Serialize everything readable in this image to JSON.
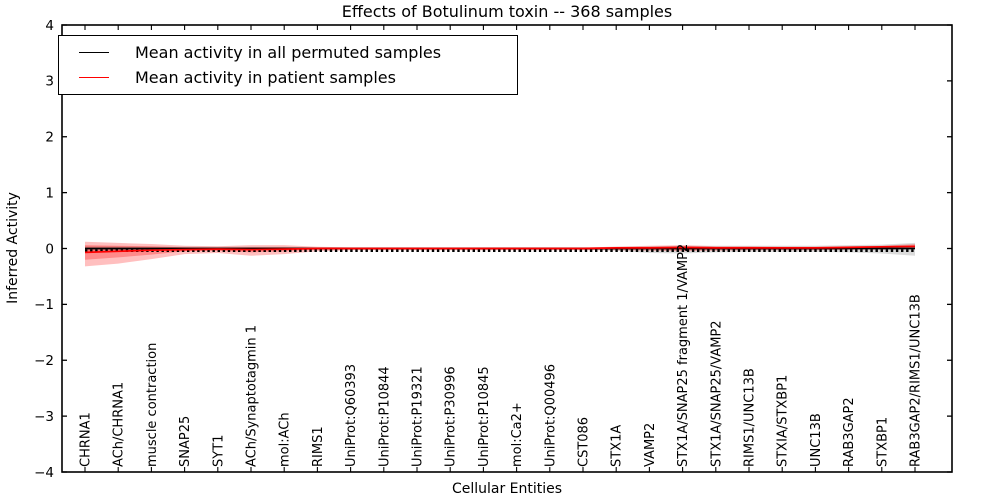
{
  "chart_data": {
    "type": "line",
    "title": "Effects of Botulinum toxin -- 368 samples",
    "xlabel": "Cellular Entities",
    "ylabel": "Inferred Activity",
    "ylim": [
      -4,
      4
    ],
    "yticks": [
      4,
      3,
      2,
      1,
      0,
      -1,
      -2,
      -3,
      -4
    ],
    "ytick_labels": [
      "4",
      "3",
      "2",
      "1",
      "0",
      "−1",
      "−2",
      "−3",
      "−4"
    ],
    "grid": false,
    "legend_position": "upper left",
    "categories": [
      "CHRNA1",
      "ACh/CHRNA1",
      "muscle contraction",
      "SNAP25",
      "SYT1",
      "ACh/Synaptotagmin 1",
      "mol:ACh",
      "RIMS1",
      "UniProt:Q60393",
      "UniProt:P10844",
      "UniProt:P19321",
      "UniProt:P30996",
      "UniProt:P10845",
      "mol:Ca2+",
      "UniProt:Q00496",
      "CST086",
      "STX1A",
      "VAMP2",
      "STX1A/SNAP25 fragment 1/VAMP2",
      "STX1A/SNAP25/VAMP2",
      "RIMS1/UNC13B",
      "STXIA/STXBP1",
      "UNC13B",
      "RAB3GAP2",
      "STXBP1",
      "RAB3GAP2/RIMS1/UNC13B"
    ],
    "series": [
      {
        "name": "Mean activity in all permuted samples",
        "color": "#000000",
        "marker": "tick-dashes-below-line",
        "values": [
          0,
          0,
          0,
          0,
          0,
          0,
          0,
          0,
          0,
          0,
          0,
          0,
          0,
          0,
          0,
          0,
          0,
          0,
          0,
          0,
          0,
          0,
          0,
          0,
          0,
          0
        ]
      },
      {
        "name": "Mean activity in patient samples",
        "color": "#ff0000",
        "marker": "none",
        "values": [
          -0.07,
          -0.05,
          -0.03,
          -0.02,
          -0.01,
          -0.02,
          -0.01,
          0,
          0,
          0,
          0,
          0,
          0,
          0,
          0,
          0,
          0.01,
          0.01,
          0.02,
          0.01,
          0.01,
          0.01,
          0.01,
          0.02,
          0.03,
          0.04
        ]
      }
    ],
    "bands": [
      {
        "name": "permuted-samples-band",
        "color": "rgba(90,90,90,0.22)",
        "upper": [
          0.04,
          0.04,
          0.03,
          0.03,
          0.03,
          0.03,
          0.03,
          0.02,
          0.02,
          0.02,
          0.02,
          0.02,
          0.02,
          0.02,
          0.02,
          0.02,
          0.03,
          0.04,
          0.05,
          0.05,
          0.05,
          0.05,
          0.05,
          0.06,
          0.07,
          0.1
        ],
        "lower": [
          -0.05,
          -0.04,
          -0.04,
          -0.03,
          -0.03,
          -0.03,
          -0.03,
          -0.02,
          -0.02,
          -0.02,
          -0.02,
          -0.02,
          -0.02,
          -0.02,
          -0.02,
          -0.02,
          -0.04,
          -0.08,
          -0.09,
          -0.07,
          -0.06,
          -0.06,
          -0.06,
          -0.07,
          -0.09,
          -0.13
        ]
      },
      {
        "name": "patient-samples-outer-band",
        "color": "rgba(255,0,0,0.25)",
        "upper": [
          0.12,
          0.1,
          0.08,
          0.05,
          0.04,
          0.06,
          0.06,
          0.03,
          0.02,
          0.02,
          0.02,
          0.02,
          0.02,
          0.02,
          0.02,
          0.02,
          0.03,
          0.05,
          0.06,
          0.04,
          0.04,
          0.03,
          0.03,
          0.04,
          0.05,
          0.08
        ],
        "lower": [
          -0.32,
          -0.27,
          -0.19,
          -0.1,
          -0.08,
          -0.13,
          -0.1,
          -0.05,
          -0.03,
          -0.03,
          -0.03,
          -0.03,
          -0.03,
          -0.03,
          -0.03,
          -0.03,
          -0.03,
          -0.04,
          -0.05,
          -0.04,
          -0.03,
          -0.03,
          -0.03,
          -0.02,
          -0.02,
          -0.01
        ]
      },
      {
        "name": "patient-samples-inner-band",
        "color": "rgba(255,0,0,0.28)",
        "upper": [
          0.06,
          0.05,
          0.04,
          0.02,
          0.01,
          0.02,
          0.02,
          0.01,
          0.01,
          0.01,
          0.01,
          0.01,
          0.01,
          0.01,
          0.01,
          0.01,
          0.01,
          0.02,
          0.03,
          0.02,
          0.02,
          0.02,
          0.02,
          0.02,
          0.03,
          0.05
        ],
        "lower": [
          -0.2,
          -0.16,
          -0.11,
          -0.05,
          -0.04,
          -0.07,
          -0.05,
          -0.02,
          -0.01,
          -0.01,
          -0.01,
          -0.01,
          -0.01,
          -0.01,
          -0.01,
          -0.01,
          -0.02,
          -0.02,
          -0.03,
          -0.02,
          -0.02,
          -0.02,
          -0.02,
          -0.01,
          -0.01,
          0.0
        ]
      }
    ]
  },
  "legend": {
    "items": [
      {
        "label": "Mean activity in all permuted samples",
        "color": "#000000"
      },
      {
        "label": "Mean activity in patient samples",
        "color": "#ff0000"
      }
    ]
  }
}
